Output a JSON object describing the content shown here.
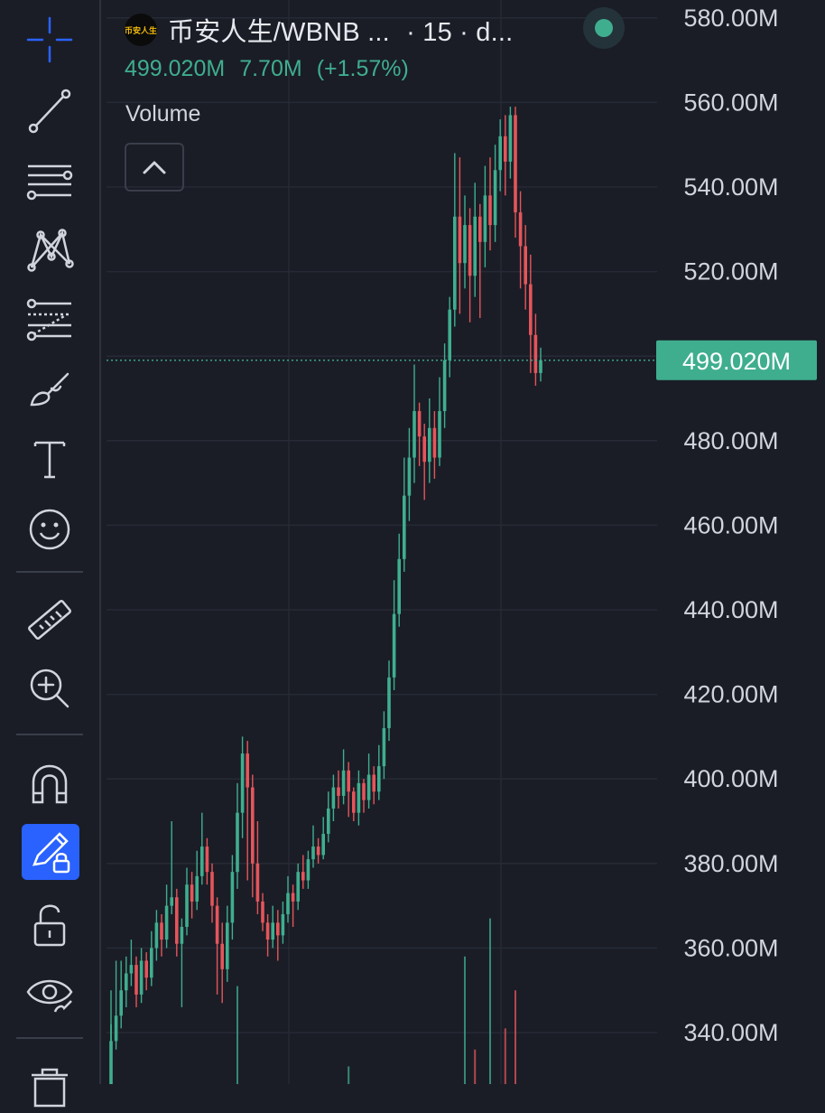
{
  "header": {
    "symbol": "币安人生/WBNB ...",
    "interval": "· 15 · d...",
    "logo_text": "币安人生",
    "last_price": "499.020M",
    "change": "7.70M",
    "change_pct": "(+1.57%)",
    "volume_label": "Volume"
  },
  "colors": {
    "background": "#1a1d26",
    "up": "#3fae8f",
    "down": "#e5555b",
    "grid": "#262a35",
    "active_tool": "#2962ff",
    "text": "#d1d4dc"
  },
  "toolbar": {
    "items": [
      {
        "icon": "crosshair-icon",
        "active": false
      },
      {
        "icon": "trend-line-icon",
        "active": false
      },
      {
        "icon": "horizontal-lines-icon",
        "active": false
      },
      {
        "icon": "pattern-icon",
        "active": false
      },
      {
        "icon": "fib-retracement-icon",
        "active": false
      },
      {
        "icon": "brush-icon",
        "active": false
      },
      {
        "icon": "text-icon",
        "active": false
      },
      {
        "icon": "emoji-icon",
        "active": false
      },
      {
        "icon": "ruler-icon",
        "active": false
      },
      {
        "icon": "zoom-in-icon",
        "active": false
      },
      {
        "icon": "magnet-icon",
        "active": false
      },
      {
        "icon": "lock-drawing-icon",
        "active": true
      },
      {
        "icon": "unlock-icon",
        "active": false
      },
      {
        "icon": "eye-icon",
        "active": false
      },
      {
        "icon": "trash-icon",
        "active": false
      }
    ]
  },
  "chart_data": {
    "type": "candlestick",
    "y_ticks": [
      340,
      360,
      380,
      400,
      420,
      440,
      460,
      480,
      500,
      520,
      540,
      560,
      580
    ],
    "y_tick_labels": [
      "340.00M",
      "360.00M",
      "380.00M",
      "400.00M",
      "420.00M",
      "440.00M",
      "460.00M",
      "480.00M",
      "520.00M",
      "540.00M",
      "560.00M",
      "580.00M"
    ],
    "ylim": [
      328,
      584
    ],
    "unit": "M",
    "last_price": 499.02,
    "last_price_label": "499.020M",
    "grid": true,
    "candles": [
      [
        326,
        338,
        350,
        320
      ],
      [
        338,
        344,
        357,
        336
      ],
      [
        344,
        350,
        357,
        341
      ],
      [
        350,
        354,
        358,
        346
      ],
      [
        354,
        356,
        362,
        351
      ],
      [
        356,
        349,
        358,
        346
      ],
      [
        349,
        357,
        360,
        347
      ],
      [
        357,
        353,
        359,
        350
      ],
      [
        353,
        360,
        364,
        351
      ],
      [
        360,
        366,
        369,
        357
      ],
      [
        366,
        362,
        368,
        358
      ],
      [
        362,
        370,
        375,
        360
      ],
      [
        370,
        372,
        390,
        368
      ],
      [
        372,
        361,
        374,
        358
      ],
      [
        361,
        365,
        367,
        346
      ],
      [
        365,
        375,
        379,
        363
      ],
      [
        375,
        371,
        378,
        367
      ],
      [
        371,
        377,
        383,
        369
      ],
      [
        377,
        384,
        392,
        375
      ],
      [
        384,
        378,
        386,
        375
      ],
      [
        378,
        370,
        380,
        366
      ],
      [
        370,
        361,
        372,
        349
      ],
      [
        361,
        355,
        366,
        347
      ],
      [
        355,
        366,
        370,
        352
      ],
      [
        366,
        378,
        382,
        362
      ],
      [
        378,
        392,
        399,
        374
      ],
      [
        392,
        406,
        410,
        386
      ],
      [
        406,
        398,
        409,
        376
      ],
      [
        398,
        380,
        401,
        372
      ],
      [
        380,
        371,
        390,
        368
      ],
      [
        371,
        366,
        373,
        364
      ],
      [
        366,
        362,
        368,
        358
      ],
      [
        362,
        366,
        370,
        360
      ],
      [
        366,
        363,
        369,
        357
      ],
      [
        363,
        368,
        371,
        361
      ],
      [
        368,
        373,
        377,
        366
      ],
      [
        373,
        371,
        375,
        365
      ],
      [
        371,
        378,
        380,
        369
      ],
      [
        378,
        376,
        382,
        374
      ],
      [
        376,
        381,
        383,
        374
      ],
      [
        381,
        384,
        389,
        379
      ],
      [
        384,
        382,
        386,
        380
      ],
      [
        382,
        387,
        391,
        381
      ],
      [
        387,
        393,
        397,
        385
      ],
      [
        393,
        398,
        401,
        390
      ],
      [
        398,
        396,
        402,
        393
      ],
      [
        396,
        402,
        407,
        394
      ],
      [
        402,
        397,
        404,
        391
      ],
      [
        397,
        392,
        398,
        390
      ],
      [
        392,
        399,
        402,
        389
      ],
      [
        399,
        395,
        400,
        392
      ],
      [
        395,
        401,
        406,
        393
      ],
      [
        401,
        397,
        403,
        394
      ],
      [
        397,
        403,
        408,
        395
      ],
      [
        403,
        412,
        416,
        400
      ],
      [
        412,
        424,
        428,
        409
      ],
      [
        424,
        439,
        447,
        421
      ],
      [
        439,
        452,
        458,
        436
      ],
      [
        452,
        467,
        476,
        449
      ],
      [
        467,
        476,
        483,
        461
      ],
      [
        476,
        487,
        498,
        470
      ],
      [
        487,
        481,
        489,
        474
      ],
      [
        481,
        475,
        484,
        466
      ],
      [
        475,
        483,
        490,
        470
      ],
      [
        483,
        476,
        487,
        471
      ],
      [
        476,
        487,
        495,
        474
      ],
      [
        487,
        499,
        503,
        483
      ],
      [
        499,
        511,
        514,
        495
      ],
      [
        511,
        533,
        548,
        507
      ],
      [
        533,
        522,
        547,
        510
      ],
      [
        522,
        531,
        538,
        516
      ],
      [
        531,
        519,
        535,
        508
      ],
      [
        519,
        533,
        541,
        514
      ],
      [
        533,
        527,
        536,
        509
      ],
      [
        527,
        538,
        545,
        521
      ],
      [
        538,
        531,
        547,
        525
      ],
      [
        531,
        544,
        550,
        527
      ],
      [
        544,
        552,
        556,
        539
      ],
      [
        552,
        546,
        557,
        538
      ],
      [
        546,
        557,
        559,
        542
      ],
      [
        557,
        534,
        559,
        528
      ],
      [
        534,
        526,
        539,
        516
      ],
      [
        526,
        517,
        531,
        511
      ],
      [
        517,
        505,
        524,
        496
      ],
      [
        505,
        496,
        510,
        493
      ],
      [
        496,
        499.02,
        502,
        494
      ]
    ],
    "volume_bars": [
      {
        "candle": 0,
        "top_price": 342,
        "dir": "up"
      },
      {
        "candle": 25,
        "top_price": 351,
        "dir": "up"
      },
      {
        "candle": 47,
        "top_price": 332,
        "dir": "up"
      },
      {
        "candle": 70,
        "top_price": 358,
        "dir": "up"
      },
      {
        "candle": 72,
        "top_price": 336,
        "dir": "down"
      },
      {
        "candle": 75,
        "top_price": 367,
        "dir": "up"
      },
      {
        "candle": 78,
        "top_price": 341,
        "dir": "down"
      },
      {
        "candle": 80,
        "top_price": 350,
        "dir": "down"
      }
    ]
  }
}
